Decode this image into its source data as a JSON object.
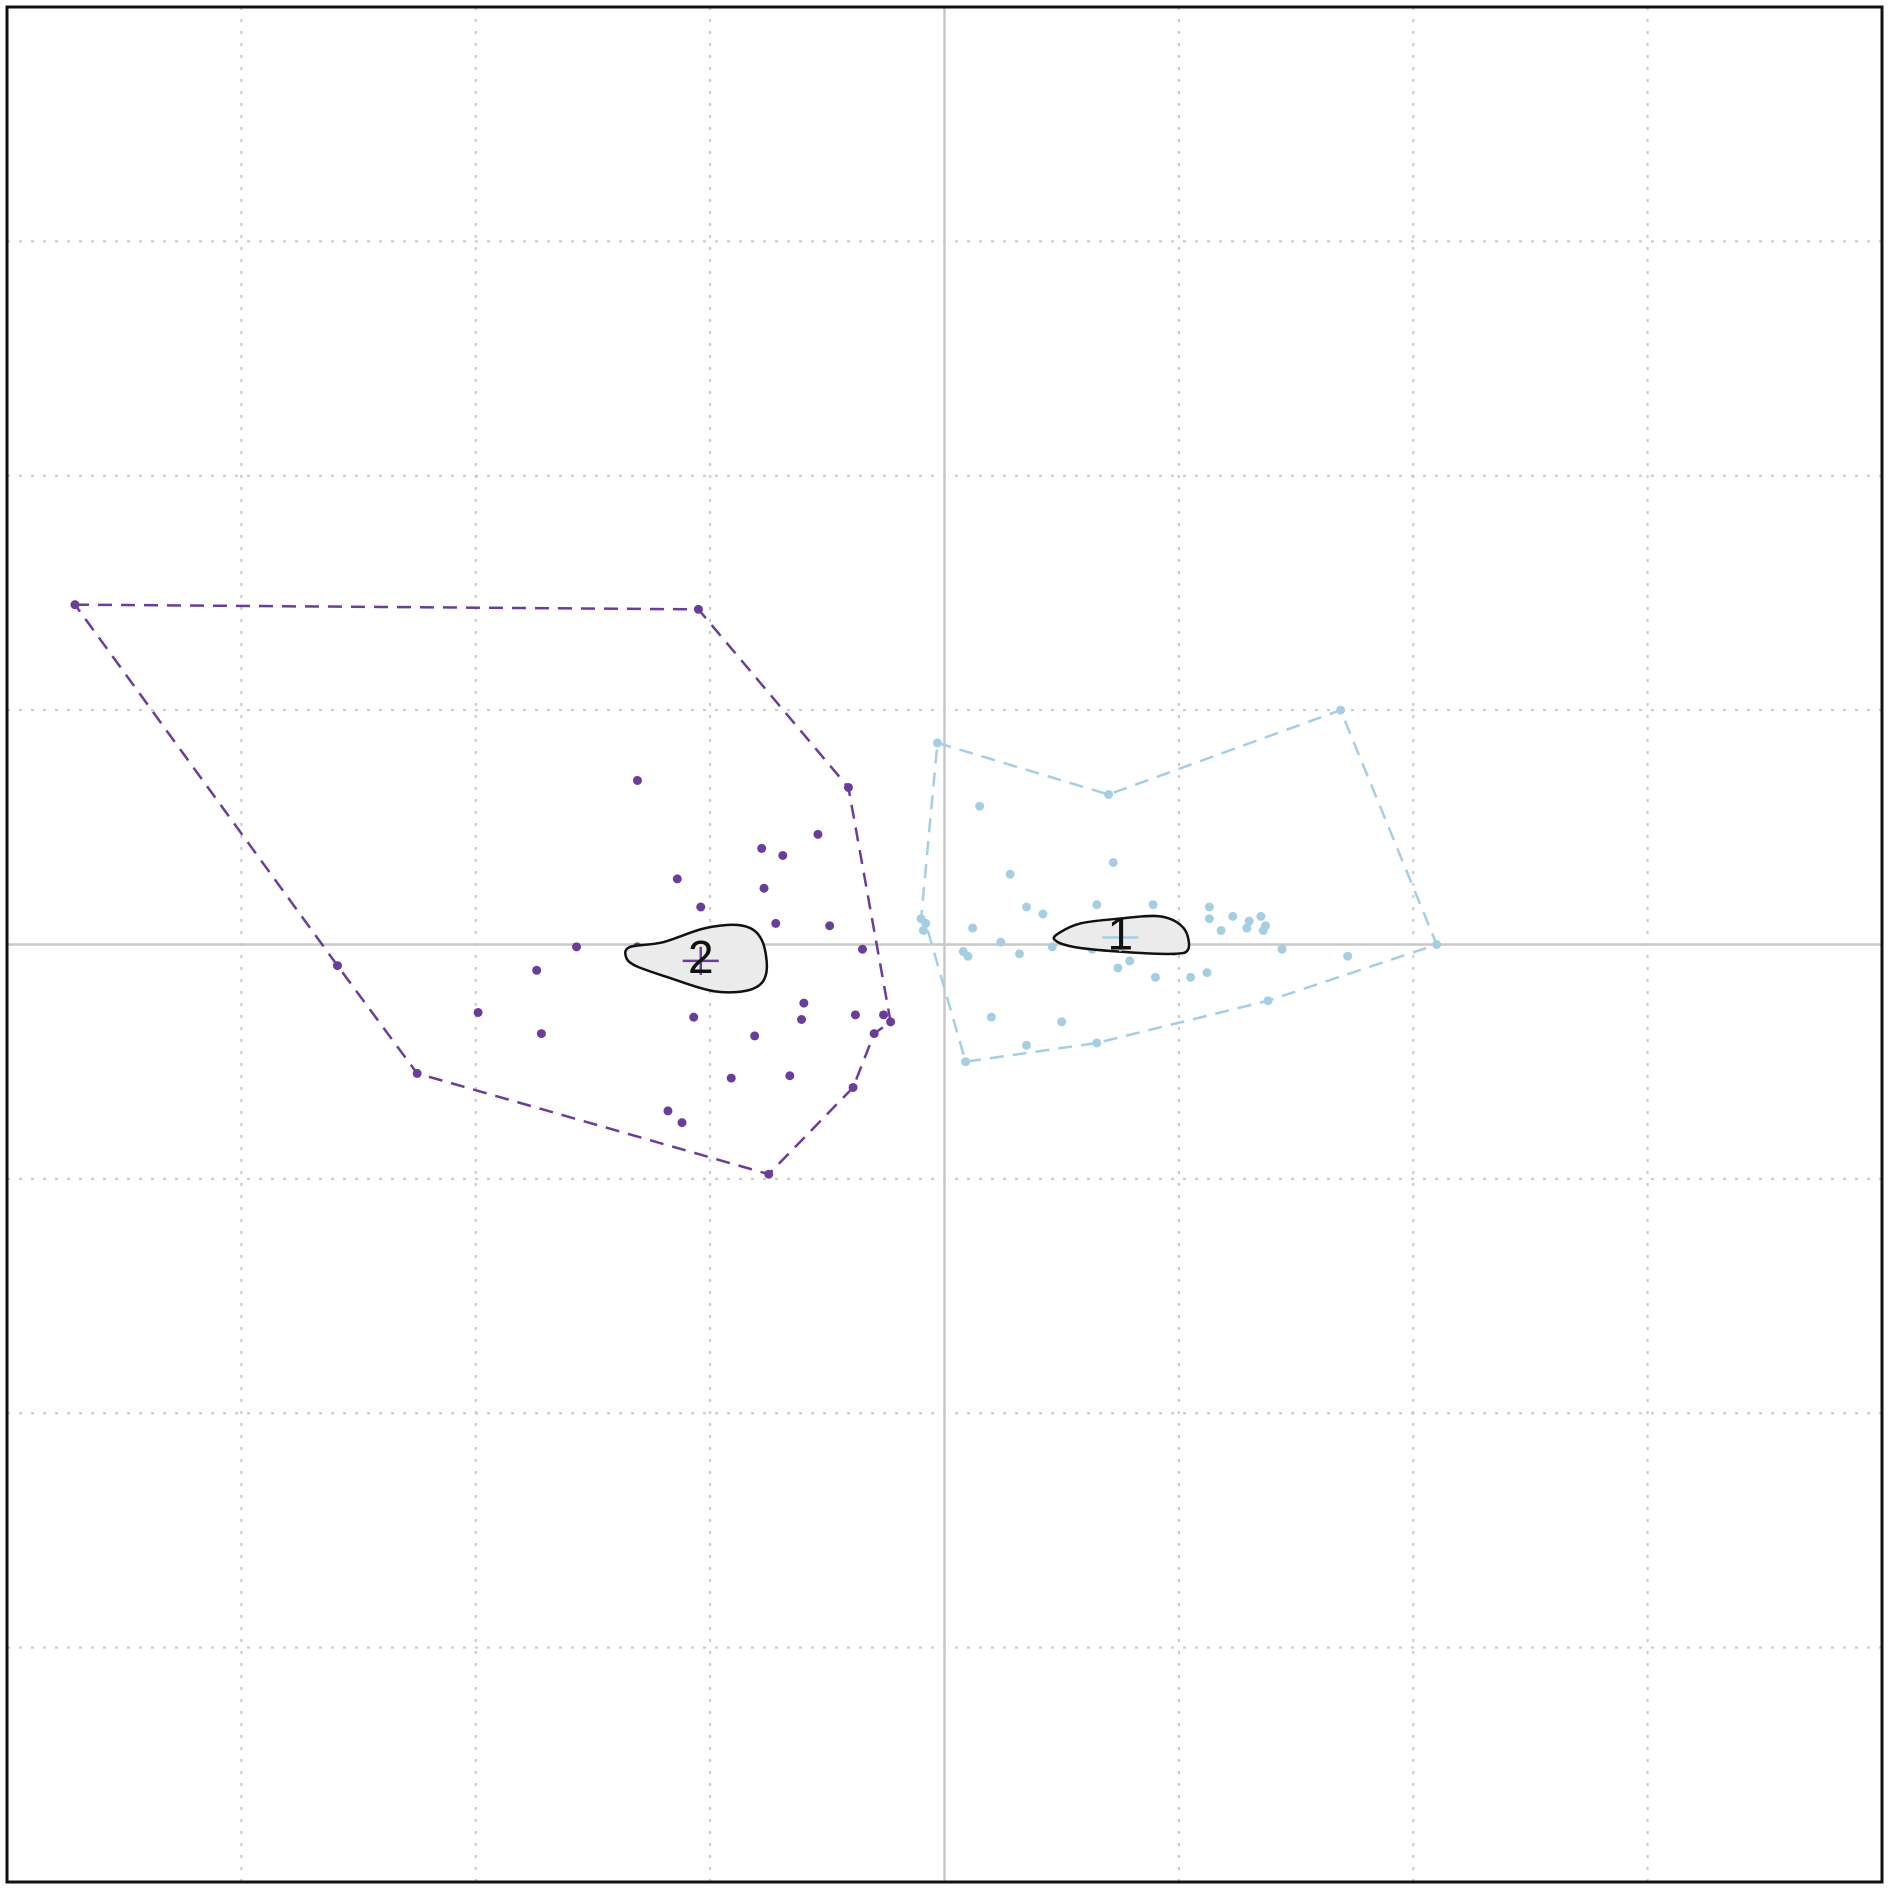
{
  "chart_data": {
    "type": "scatter",
    "title": "",
    "xlabel": "",
    "ylabel": "",
    "xlim": [
      -4,
      4
    ],
    "ylim": [
      -4,
      4
    ],
    "grid": true,
    "grid_step": 1,
    "reference_lines": {
      "x": 0,
      "y": 0
    },
    "colors": {
      "cluster_1": "#a6cee3",
      "cluster_2": "#6a3d9a",
      "grid": "#c8c8c8",
      "frame": "#111111",
      "density_fill": "#ebebeb"
    },
    "series": [
      {
        "label": "1",
        "color": "#a6cee3",
        "points": [
          [
            -0.03,
            0.86
          ],
          [
            0.7,
            0.64
          ],
          [
            0.15,
            0.59
          ],
          [
            0.72,
            0.35
          ],
          [
            0.28,
            0.3
          ],
          [
            0.35,
            0.16
          ],
          [
            0.65,
            0.17
          ],
          [
            0.89,
            0.17
          ],
          [
            0.42,
            0.13
          ],
          [
            1.13,
            0.16
          ],
          [
            1.23,
            0.12
          ],
          [
            1.35,
            0.12
          ],
          [
            -0.1,
            0.11
          ],
          [
            -0.08,
            0.09
          ],
          [
            0.12,
            0.07
          ],
          [
            0.82,
            0.09
          ],
          [
            1.13,
            0.11
          ],
          [
            1.3,
            0.1
          ],
          [
            1.37,
            0.08
          ],
          [
            -0.09,
            0.06
          ],
          [
            0.8,
            0.05
          ],
          [
            1.0,
            0.05
          ],
          [
            1.18,
            0.06
          ],
          [
            1.29,
            0.07
          ],
          [
            1.36,
            0.06
          ],
          [
            0.24,
            0.01
          ],
          [
            0.46,
            -0.01
          ],
          [
            0.63,
            -0.02
          ],
          [
            0.91,
            -0.02
          ],
          [
            0.98,
            -0.03
          ],
          [
            1.44,
            -0.02
          ],
          [
            0.32,
            -0.04
          ],
          [
            0.08,
            -0.03
          ],
          [
            0.1,
            -0.05
          ],
          [
            0.79,
            -0.07
          ],
          [
            0.74,
            -0.1
          ],
          [
            1.72,
            -0.05
          ],
          [
            1.12,
            -0.12
          ],
          [
            0.9,
            -0.14
          ],
          [
            1.05,
            -0.14
          ],
          [
            1.38,
            -0.24
          ],
          [
            0.2,
            -0.31
          ],
          [
            0.5,
            -0.33
          ],
          [
            0.35,
            -0.43
          ],
          [
            0.65,
            -0.42
          ],
          [
            0.09,
            -0.5
          ],
          [
            1.69,
            1.0
          ],
          [
            2.1,
            0.0
          ]
        ],
        "hull": [
          [
            -0.03,
            0.86
          ],
          [
            0.7,
            0.64
          ],
          [
            1.69,
            1.0
          ],
          [
            2.1,
            0.0
          ],
          [
            1.38,
            -0.24
          ],
          [
            0.65,
            -0.42
          ],
          [
            0.09,
            -0.5
          ],
          [
            -0.08,
            0.09
          ],
          [
            -0.1,
            0.11
          ]
        ],
        "center": [
          0.75,
          0.03
        ],
        "density_contour": [
          [
            0.49,
            0.05
          ],
          [
            0.58,
            0.09
          ],
          [
            0.74,
            0.11
          ],
          [
            0.92,
            0.12
          ],
          [
            1.02,
            0.07
          ],
          [
            1.04,
            -0.02
          ],
          [
            0.97,
            -0.04
          ],
          [
            0.74,
            -0.03
          ],
          [
            0.55,
            -0.01
          ],
          [
            0.47,
            0.02
          ]
        ]
      },
      {
        "label": "2",
        "color": "#6a3d9a",
        "points": [
          [
            -3.71,
            1.45
          ],
          [
            -1.05,
            1.43
          ],
          [
            -0.41,
            0.67
          ],
          [
            -1.31,
            0.7
          ],
          [
            -0.54,
            0.47
          ],
          [
            -0.78,
            0.41
          ],
          [
            -0.69,
            0.38
          ],
          [
            -1.14,
            0.28
          ],
          [
            -0.77,
            0.24
          ],
          [
            -1.04,
            0.16
          ],
          [
            -0.72,
            0.09
          ],
          [
            -0.49,
            0.08
          ],
          [
            -1.57,
            -0.01
          ],
          [
            -1.31,
            -0.01
          ],
          [
            -0.35,
            -0.02
          ],
          [
            -0.78,
            -0.05
          ],
          [
            -0.79,
            -0.11
          ],
          [
            -2.59,
            -0.09
          ],
          [
            -1.74,
            -0.11
          ],
          [
            -0.95,
            -0.15
          ],
          [
            -0.6,
            -0.25
          ],
          [
            -1.99,
            -0.29
          ],
          [
            -0.61,
            -0.32
          ],
          [
            -1.07,
            -0.31
          ],
          [
            -0.38,
            -0.3
          ],
          [
            -0.26,
            -0.3
          ],
          [
            -0.23,
            -0.33
          ],
          [
            -0.3,
            -0.38
          ],
          [
            -1.72,
            -0.38
          ],
          [
            -0.81,
            -0.39
          ],
          [
            -2.25,
            -0.55
          ],
          [
            -0.91,
            -0.57
          ],
          [
            -0.66,
            -0.56
          ],
          [
            -0.39,
            -0.61
          ],
          [
            -1.18,
            -0.71
          ],
          [
            -1.12,
            -0.76
          ],
          [
            -0.75,
            -0.98
          ]
        ],
        "hull": [
          [
            -3.71,
            1.45
          ],
          [
            -1.05,
            1.43
          ],
          [
            -0.41,
            0.67
          ],
          [
            -0.23,
            -0.33
          ],
          [
            -0.3,
            -0.38
          ],
          [
            -0.39,
            -0.61
          ],
          [
            -0.75,
            -0.98
          ],
          [
            -2.25,
            -0.55
          ],
          [
            -2.59,
            -0.09
          ]
        ],
        "center": [
          -1.04,
          -0.07
        ],
        "density_contour": [
          [
            -1.34,
            -0.01
          ],
          [
            -1.2,
            0.01
          ],
          [
            -1.02,
            0.07
          ],
          [
            -0.86,
            0.08
          ],
          [
            -0.78,
            0.02
          ],
          [
            -0.76,
            -0.12
          ],
          [
            -0.82,
            -0.19
          ],
          [
            -0.98,
            -0.2
          ],
          [
            -1.18,
            -0.14
          ],
          [
            -1.32,
            -0.09
          ],
          [
            -1.36,
            -0.05
          ]
        ]
      }
    ]
  }
}
